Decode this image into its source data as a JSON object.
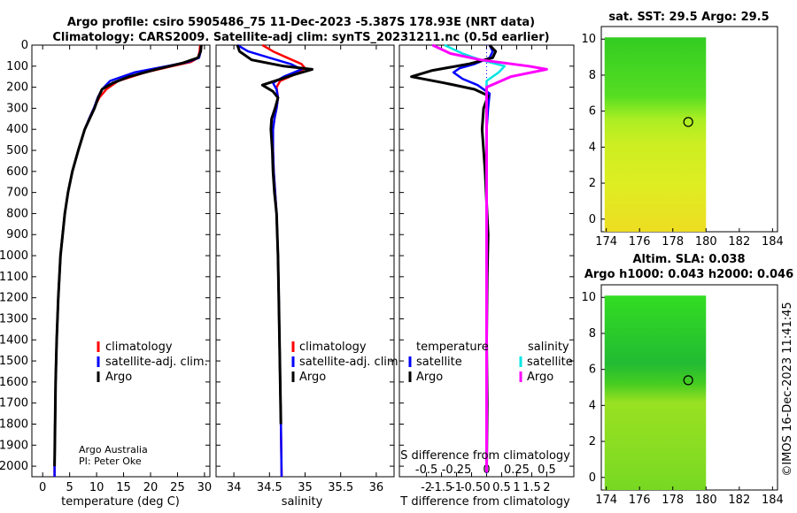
{
  "title_line1": "Argo profile: csiro 5905486_75 11-Dec-2023 -5.387S 178.93E (NRT data)",
  "title_line2": "Climatology: CARS2009. Satellite-adj clim: synTS_20231211.nc (0.5d earlier)",
  "credit_line1": "Argo Australia",
  "credit_line2": "PI: Peter Oke",
  "imos_stamp": "©IMOS 16-Dec-2023 11:41:45",
  "colors": {
    "climatology": "#ff0000",
    "satellite": "#0000ff",
    "argo": "#000000",
    "sal_satellite": "#00e5e5",
    "sal_argo": "#ff00ff"
  },
  "chart_data": [
    {
      "type": "line",
      "name": "temperature",
      "xlabel": "temperature (deg C)",
      "xlim": [
        -2,
        31
      ],
      "ylim": [
        0,
        2050
      ],
      "xticks": [
        "0",
        "5",
        "10",
        "15",
        "20",
        "25",
        "30"
      ],
      "xtick_values": [
        0,
        5,
        10,
        15,
        20,
        25,
        30
      ],
      "yticks": [
        "0",
        "100",
        "200",
        "300",
        "400",
        "500",
        "600",
        "700",
        "800",
        "900",
        "1000",
        "1100",
        "1200",
        "1300",
        "1400",
        "1500",
        "1600",
        "1700",
        "1800",
        "1900",
        "2000"
      ],
      "ytick_values": [
        0,
        100,
        200,
        300,
        400,
        500,
        600,
        700,
        800,
        900,
        1000,
        1100,
        1200,
        1300,
        1400,
        1500,
        1600,
        1700,
        1800,
        1900,
        2000
      ],
      "legend": [
        "climatology",
        "satellite-adj. clim.",
        "Argo"
      ],
      "series": [
        {
          "name": "climatology",
          "color": "#ff0000",
          "x": [
            29.2,
            29.1,
            28.8,
            27.5,
            24,
            19,
            14,
            11.8,
            10.5,
            9.5,
            8.6,
            7.8,
            6.6,
            5.5,
            4.7,
            4.1,
            3.3,
            2.9,
            2.6,
            2.4,
            2.3,
            2.2,
            2.2
          ],
          "y": [
            0,
            30,
            60,
            80,
            100,
            130,
            170,
            210,
            250,
            300,
            350,
            400,
            500,
            600,
            700,
            800,
            1000,
            1200,
            1400,
            1600,
            1800,
            2000,
            2050
          ]
        },
        {
          "name": "satellite-adj. clim.",
          "color": "#0000ff",
          "x": [
            29.4,
            29.3,
            29,
            27,
            23,
            17,
            12.5,
            11,
            10.2,
            9.5,
            8.6,
            7.8,
            6.6,
            5.5,
            4.7,
            4.1,
            3.3,
            2.9,
            2.6,
            2.4,
            2.3,
            2.2,
            2.2
          ],
          "y": [
            0,
            30,
            60,
            80,
            100,
            130,
            170,
            210,
            250,
            300,
            350,
            400,
            500,
            600,
            700,
            800,
            1000,
            1200,
            1400,
            1600,
            1800,
            2000,
            2050
          ]
        },
        {
          "name": "Argo",
          "color": "#000000",
          "x": [
            29.4,
            29.3,
            28.8,
            26,
            21,
            16,
            13,
            11,
            10.3,
            9.6,
            8.7,
            7.8,
            6.6,
            5.5,
            4.7,
            4.1,
            3.3,
            2.9,
            2.6,
            2.4,
            2.3,
            2.2
          ],
          "y": [
            0,
            30,
            60,
            85,
            115,
            150,
            180,
            210,
            250,
            300,
            350,
            400,
            500,
            600,
            700,
            800,
            1000,
            1200,
            1400,
            1600,
            1800,
            2000
          ]
        }
      ]
    },
    {
      "type": "line",
      "name": "salinity",
      "xlabel": "salinity",
      "xlim": [
        33.75,
        36.25
      ],
      "ylim": [
        0,
        2050
      ],
      "xticks": [
        "34",
        "34.5",
        "35",
        "35.5",
        "36"
      ],
      "xtick_values": [
        34,
        34.5,
        35,
        35.5,
        36
      ],
      "legend": [
        "climatology",
        "satellite-adj. clim.",
        "Argo"
      ],
      "series": [
        {
          "name": "climatology",
          "color": "#ff0000",
          "x": [
            34.4,
            34.55,
            34.75,
            34.95,
            35.0,
            34.85,
            34.65,
            34.6,
            34.62,
            34.6,
            34.57,
            34.55,
            34.55,
            34.56,
            34.58,
            34.6,
            34.62,
            34.63,
            34.64,
            34.65,
            34.66,
            34.67
          ],
          "y": [
            0,
            30,
            60,
            90,
            110,
            140,
            170,
            200,
            250,
            300,
            350,
            400,
            500,
            600,
            700,
            800,
            1000,
            1200,
            1400,
            1600,
            1800,
            2050
          ]
        },
        {
          "name": "satellite-adj. clim.",
          "color": "#0000ff",
          "x": [
            34.05,
            34.2,
            34.5,
            34.8,
            34.95,
            34.7,
            34.55,
            34.6,
            34.62,
            34.6,
            34.57,
            34.55,
            34.55,
            34.56,
            34.58,
            34.6,
            34.62,
            34.63,
            34.64,
            34.65,
            34.66,
            34.67
          ],
          "y": [
            0,
            30,
            60,
            90,
            115,
            150,
            180,
            210,
            250,
            300,
            350,
            400,
            500,
            600,
            700,
            800,
            1000,
            1200,
            1400,
            1600,
            1800,
            2050
          ]
        },
        {
          "name": "Argo",
          "color": "#000000",
          "x": [
            34.05,
            34.08,
            34.25,
            34.7,
            35.1,
            34.85,
            34.4,
            34.55,
            34.62,
            34.58,
            34.53,
            34.52,
            34.54,
            34.55,
            34.57,
            34.6,
            34.62,
            34.63,
            34.64,
            34.65,
            34.66
          ],
          "y": [
            0,
            30,
            70,
            100,
            115,
            140,
            190,
            220,
            250,
            300,
            350,
            400,
            500,
            600,
            700,
            800,
            1000,
            1200,
            1400,
            1600,
            1800
          ]
        }
      ]
    },
    {
      "type": "line",
      "name": "difference",
      "xlabel": "T difference from climatology",
      "xlabel_top": "S difference from climatology",
      "xlim": [
        -2.9,
        2.9
      ],
      "ylim": [
        0,
        2050
      ],
      "xticks": [
        "-2",
        "-1.5",
        "-1",
        "-0.5",
        "0",
        "0.5",
        "1",
        "1.5",
        "2"
      ],
      "xtick_values": [
        -2,
        -1.5,
        -1,
        -0.5,
        0,
        0.5,
        1,
        1.5,
        2
      ],
      "sticks": [
        "-0.5",
        "-0.25",
        "0",
        "0.25",
        "0.5"
      ],
      "stick_values": [
        -0.5,
        -0.25,
        0,
        0.25,
        0.5
      ],
      "legend_temperature_title": "temperature",
      "legend_salinity_title": "salinity",
      "legend": [
        "satellite",
        "Argo",
        "satellite",
        "Argo"
      ],
      "series": [
        {
          "name": "temperature satellite",
          "color": "#0000ff",
          "x": [
            0.1,
            0.2,
            0.1,
            -0.4,
            -0.9,
            -1.1,
            -0.8,
            -0.3,
            0.1,
            0.05,
            0,
            0,
            0,
            0,
            0,
            0
          ],
          "y": [
            0,
            30,
            60,
            90,
            110,
            130,
            160,
            190,
            230,
            300,
            400,
            600,
            900,
            1300,
            1700,
            2030
          ]
        },
        {
          "name": "temperature Argo",
          "color": "#000000",
          "x": [
            0.1,
            0.3,
            0.2,
            -0.6,
            -1.8,
            -2.5,
            -1.4,
            -0.4,
            0.05,
            -0.1,
            -0.15,
            -0.05,
            0.05,
            0.02,
            0.0,
            0.02,
            0
          ],
          "y": [
            0,
            30,
            60,
            90,
            120,
            150,
            180,
            210,
            240,
            300,
            400,
            600,
            900,
            1100,
            1400,
            1700,
            2000
          ]
        },
        {
          "name": "salinity satellite",
          "color": "#00e5e5",
          "x": [
            -0.35,
            -0.2,
            -0.05,
            0.15,
            0.1,
            0.0,
            0.0,
            0,
            0,
            0,
            0
          ],
          "y": [
            0,
            40,
            70,
            100,
            130,
            170,
            220,
            400,
            800,
            1400,
            2030
          ]
        },
        {
          "name": "salinity Argo",
          "color": "#ff00ff",
          "x": [
            -0.45,
            -0.3,
            -0.05,
            0.35,
            0.5,
            0.2,
            0.0,
            0,
            0,
            0,
            0
          ],
          "y": [
            0,
            40,
            70,
            100,
            115,
            150,
            200,
            300,
            700,
            1300,
            2030
          ]
        }
      ]
    },
    {
      "type": "heatmap",
      "name": "sst_map",
      "title": "sat. SST: 29.5 Argo: 29.5",
      "xlim": [
        173.7,
        184.3
      ],
      "ylim": [
        -0.7,
        10.7
      ],
      "xticks": [
        "174",
        "176",
        "178",
        "180",
        "182",
        "184"
      ],
      "xtick_values": [
        174,
        176,
        178,
        180,
        182,
        184
      ],
      "yticks": [
        "0",
        "2",
        "4",
        "6",
        "8",
        "10"
      ],
      "ytick_values": [
        0,
        2,
        4,
        6,
        8,
        10
      ],
      "data_extent": {
        "x": [
          173.9,
          180
        ],
        "y": [
          -0.7,
          10.1
        ]
      },
      "argo_position": [
        178.93,
        5.4
      ]
    },
    {
      "type": "heatmap",
      "name": "sla_map",
      "title_line1": "Altim. SLA: 0.038",
      "title_line2": "Argo h1000: 0.043 h2000: 0.046",
      "xlim": [
        173.7,
        184.3
      ],
      "ylim": [
        -0.7,
        10.7
      ],
      "xticks": [
        "174",
        "176",
        "178",
        "180",
        "182",
        "184"
      ],
      "xtick_values": [
        174,
        176,
        178,
        180,
        182,
        184
      ],
      "yticks": [
        "0",
        "2",
        "4",
        "6",
        "8",
        "10"
      ],
      "ytick_values": [
        0,
        2,
        4,
        6,
        8,
        10
      ],
      "data_extent": {
        "x": [
          173.9,
          180
        ],
        "y": [
          -0.7,
          10.1
        ]
      },
      "argo_position": [
        178.93,
        5.4
      ]
    }
  ]
}
